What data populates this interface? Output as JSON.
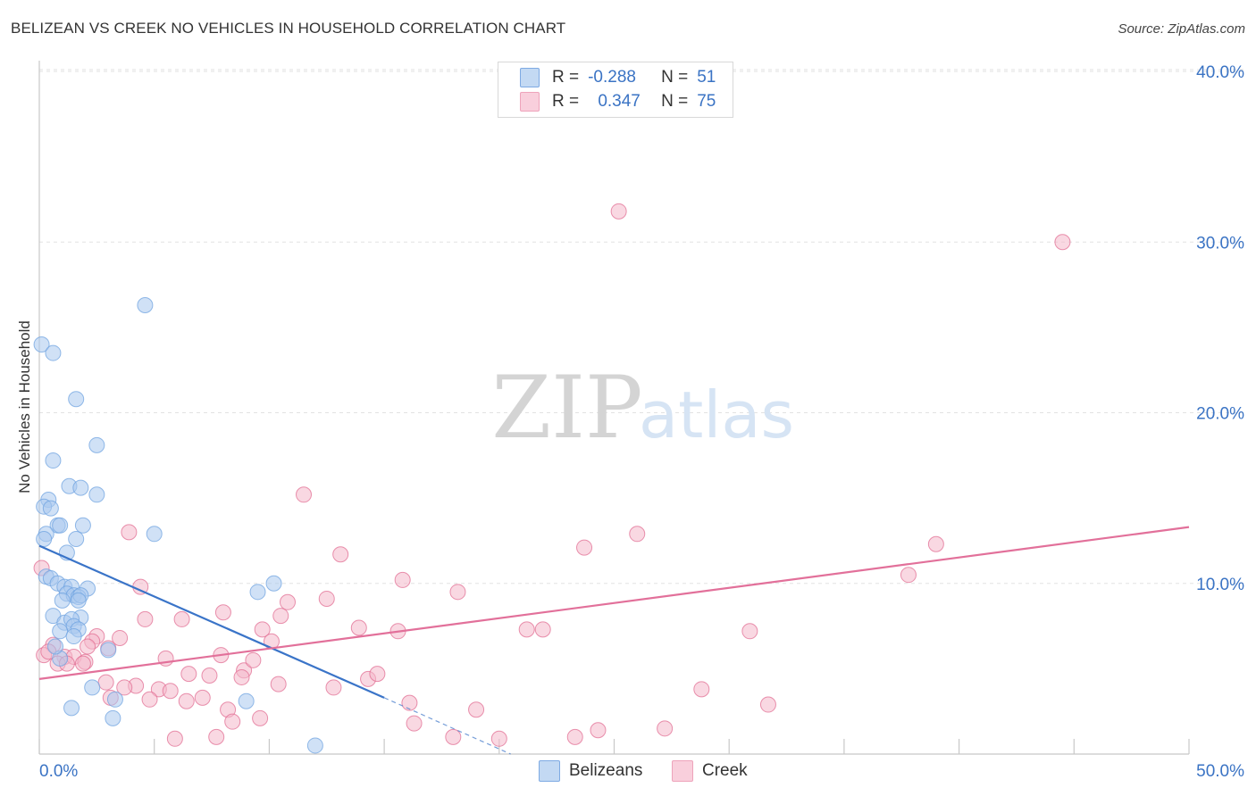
{
  "title": "BELIZEAN VS CREEK NO VEHICLES IN HOUSEHOLD CORRELATION CHART",
  "source": "Source: ZipAtlas.com",
  "watermark": {
    "zip": "ZIP",
    "atlas": "atlas"
  },
  "legend": {
    "rows": [
      {
        "r_label": "R =",
        "r_value": "-0.288",
        "n_label": "N =",
        "n_value": "51",
        "color": "#a9c8ef"
      },
      {
        "r_label": "R =",
        "r_value": "0.347",
        "n_label": "N =",
        "n_value": "75",
        "color": "#f4b8cb"
      }
    ]
  },
  "bottom_legend": [
    {
      "label": "Belizeans",
      "color": "#a9c8ef"
    },
    {
      "label": "Creek",
      "color": "#f4b8cb"
    }
  ],
  "chart_data": {
    "type": "scatter",
    "title": "BELIZEAN VS CREEK NO VEHICLES IN HOUSEHOLD CORRELATION CHART",
    "xlabel": "",
    "ylabel": "No Vehicles in Household",
    "xlim": [
      0,
      50
    ],
    "ylim": [
      0,
      40
    ],
    "x_tick_labels": [
      {
        "value": 0,
        "label": "0.0%"
      },
      {
        "value": 50,
        "label": "50.0%"
      }
    ],
    "y_tick_labels": [
      {
        "value": 10,
        "label": "10.0%"
      },
      {
        "value": 20,
        "label": "20.0%"
      },
      {
        "value": 30,
        "label": "30.0%"
      },
      {
        "value": 40,
        "label": "40.0%"
      }
    ],
    "series": [
      {
        "name": "Belizeans",
        "color": "#6fa3e0",
        "fill": "#a9c8ef",
        "trend": {
          "x0": 0,
          "y0": 12.2,
          "x1": 15,
          "y1": 3.3,
          "dash_to_x": 20.5,
          "dash_to_y": 0
        },
        "points": [
          [
            0.1,
            24.0
          ],
          [
            0.6,
            23.5
          ],
          [
            4.6,
            26.3
          ],
          [
            1.6,
            20.8
          ],
          [
            2.5,
            18.1
          ],
          [
            0.6,
            17.2
          ],
          [
            0.4,
            14.9
          ],
          [
            1.3,
            15.7
          ],
          [
            1.8,
            15.6
          ],
          [
            2.5,
            15.2
          ],
          [
            0.2,
            14.5
          ],
          [
            0.5,
            14.4
          ],
          [
            0.8,
            13.4
          ],
          [
            0.9,
            13.4
          ],
          [
            1.9,
            13.4
          ],
          [
            0.3,
            12.9
          ],
          [
            0.2,
            12.6
          ],
          [
            1.6,
            12.6
          ],
          [
            5.0,
            12.9
          ],
          [
            1.2,
            11.8
          ],
          [
            0.3,
            10.4
          ],
          [
            0.5,
            10.3
          ],
          [
            0.8,
            10.0
          ],
          [
            1.1,
            9.8
          ],
          [
            1.4,
            9.8
          ],
          [
            2.1,
            9.7
          ],
          [
            1.2,
            9.4
          ],
          [
            1.5,
            9.3
          ],
          [
            1.7,
            9.2
          ],
          [
            1.8,
            9.3
          ],
          [
            1.0,
            9.0
          ],
          [
            1.7,
            9.0
          ],
          [
            9.5,
            9.5
          ],
          [
            10.2,
            10.0
          ],
          [
            0.6,
            8.1
          ],
          [
            1.8,
            8.0
          ],
          [
            1.1,
            7.7
          ],
          [
            1.4,
            7.9
          ],
          [
            1.5,
            7.5
          ],
          [
            1.7,
            7.3
          ],
          [
            0.9,
            7.2
          ],
          [
            1.5,
            6.9
          ],
          [
            3.0,
            6.1
          ],
          [
            0.9,
            5.6
          ],
          [
            2.3,
            3.9
          ],
          [
            3.3,
            3.2
          ],
          [
            9.0,
            3.1
          ],
          [
            1.4,
            2.7
          ],
          [
            3.2,
            2.1
          ],
          [
            12.0,
            0.5
          ],
          [
            0.7,
            6.3
          ]
        ]
      },
      {
        "name": "Creek",
        "color": "#e26d93",
        "fill": "#f4b8cb",
        "trend": {
          "x0": 0,
          "y0": 4.4,
          "x1": 50,
          "y1": 13.3
        },
        "points": [
          [
            25.2,
            31.8
          ],
          [
            44.5,
            30.0
          ],
          [
            11.5,
            15.2
          ],
          [
            3.9,
            13.0
          ],
          [
            26.0,
            12.9
          ],
          [
            23.7,
            12.1
          ],
          [
            39.0,
            12.3
          ],
          [
            13.1,
            11.7
          ],
          [
            15.8,
            10.2
          ],
          [
            0.1,
            10.9
          ],
          [
            4.4,
            9.8
          ],
          [
            18.2,
            9.5
          ],
          [
            12.5,
            9.1
          ],
          [
            10.8,
            8.9
          ],
          [
            37.8,
            10.5
          ],
          [
            8.0,
            8.3
          ],
          [
            4.6,
            7.9
          ],
          [
            6.2,
            7.9
          ],
          [
            10.5,
            8.1
          ],
          [
            9.7,
            7.3
          ],
          [
            13.9,
            7.4
          ],
          [
            15.6,
            7.2
          ],
          [
            21.2,
            7.3
          ],
          [
            21.9,
            7.3
          ],
          [
            30.9,
            7.2
          ],
          [
            3.5,
            6.8
          ],
          [
            2.5,
            6.9
          ],
          [
            10.1,
            6.6
          ],
          [
            2.3,
            6.6
          ],
          [
            0.6,
            6.4
          ],
          [
            2.1,
            6.3
          ],
          [
            3.0,
            6.2
          ],
          [
            0.2,
            5.8
          ],
          [
            1.1,
            5.7
          ],
          [
            1.5,
            5.7
          ],
          [
            5.5,
            5.6
          ],
          [
            2.0,
            5.4
          ],
          [
            0.8,
            5.3
          ],
          [
            1.2,
            5.3
          ],
          [
            7.9,
            5.8
          ],
          [
            6.5,
            4.7
          ],
          [
            7.4,
            4.6
          ],
          [
            8.9,
            4.9
          ],
          [
            8.8,
            4.5
          ],
          [
            14.3,
            4.4
          ],
          [
            14.7,
            4.7
          ],
          [
            2.9,
            4.2
          ],
          [
            4.2,
            4.0
          ],
          [
            3.7,
            3.9
          ],
          [
            5.2,
            3.8
          ],
          [
            5.7,
            3.7
          ],
          [
            10.4,
            4.1
          ],
          [
            12.8,
            3.9
          ],
          [
            28.8,
            3.8
          ],
          [
            3.1,
            3.3
          ],
          [
            4.8,
            3.2
          ],
          [
            6.4,
            3.1
          ],
          [
            7.1,
            3.3
          ],
          [
            8.2,
            2.6
          ],
          [
            9.6,
            2.1
          ],
          [
            8.4,
            1.9
          ],
          [
            16.1,
            3.0
          ],
          [
            16.3,
            1.8
          ],
          [
            19.0,
            2.6
          ],
          [
            31.7,
            2.9
          ],
          [
            5.9,
            0.9
          ],
          [
            7.7,
            1.0
          ],
          [
            18.0,
            1.0
          ],
          [
            20.0,
            0.9
          ],
          [
            23.3,
            1.0
          ],
          [
            24.3,
            1.4
          ],
          [
            27.2,
            1.5
          ],
          [
            1.9,
            5.3
          ],
          [
            0.4,
            6.0
          ],
          [
            9.3,
            5.5
          ]
        ]
      }
    ]
  }
}
